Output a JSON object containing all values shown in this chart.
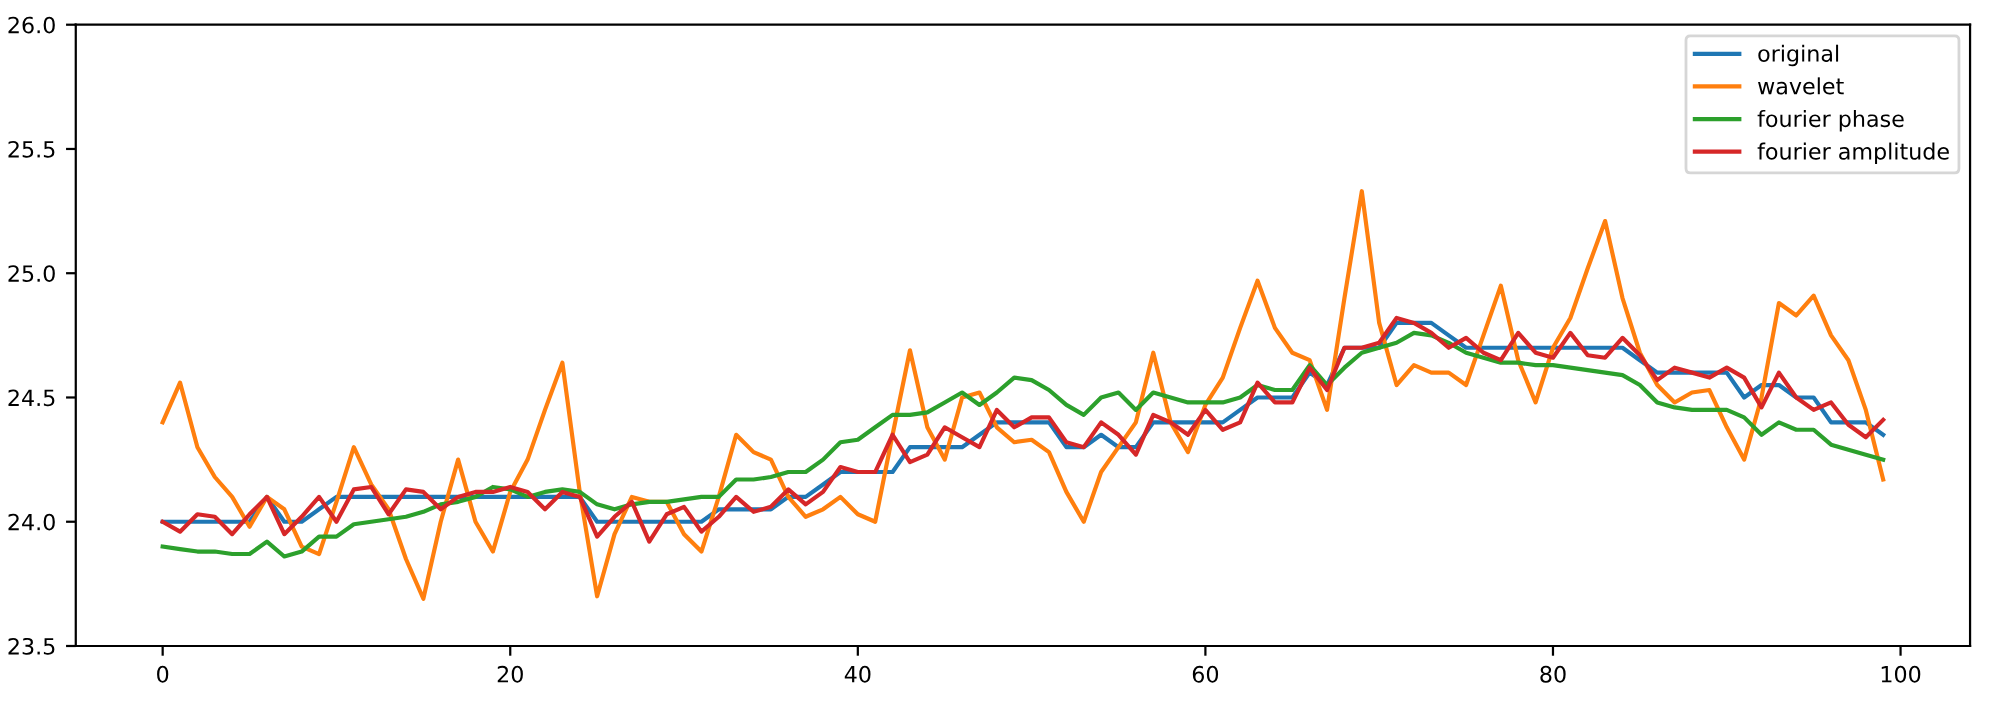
{
  "chart_data": {
    "type": "line",
    "x": [
      0,
      1,
      2,
      3,
      4,
      5,
      6,
      7,
      8,
      9,
      10,
      11,
      12,
      13,
      14,
      15,
      16,
      17,
      18,
      19,
      20,
      21,
      22,
      23,
      24,
      25,
      26,
      27,
      28,
      29,
      30,
      31,
      32,
      33,
      34,
      35,
      36,
      37,
      38,
      39,
      40,
      41,
      42,
      43,
      44,
      45,
      46,
      47,
      48,
      49,
      50,
      51,
      52,
      53,
      54,
      55,
      56,
      57,
      58,
      59,
      60,
      61,
      62,
      63,
      64,
      65,
      66,
      67,
      68,
      69,
      70,
      71,
      72,
      73,
      74,
      75,
      76,
      77,
      78,
      79,
      80,
      81,
      82,
      83,
      84,
      85,
      86,
      87,
      88,
      89,
      90,
      91,
      92,
      93,
      94,
      95,
      96,
      97,
      98,
      99
    ],
    "series": [
      {
        "name": "original",
        "color": "#1f77b4",
        "values": [
          24.0,
          24.0,
          24.0,
          24.0,
          24.0,
          24.0,
          24.1,
          24.0,
          24.0,
          24.05,
          24.1,
          24.1,
          24.1,
          24.1,
          24.1,
          24.1,
          24.1,
          24.1,
          24.1,
          24.1,
          24.1,
          24.1,
          24.1,
          24.1,
          24.1,
          24.0,
          24.0,
          24.0,
          24.0,
          24.0,
          24.0,
          24.0,
          24.05,
          24.05,
          24.05,
          24.05,
          24.1,
          24.1,
          24.15,
          24.2,
          24.2,
          24.2,
          24.2,
          24.3,
          24.3,
          24.3,
          24.3,
          24.35,
          24.4,
          24.4,
          24.4,
          24.4,
          24.3,
          24.3,
          24.35,
          24.3,
          24.3,
          24.4,
          24.4,
          24.4,
          24.4,
          24.4,
          24.45,
          24.5,
          24.5,
          24.5,
          24.6,
          24.55,
          24.7,
          24.7,
          24.7,
          24.8,
          24.8,
          24.8,
          24.75,
          24.7,
          24.7,
          24.7,
          24.7,
          24.7,
          24.7,
          24.7,
          24.7,
          24.7,
          24.7,
          24.65,
          24.6,
          24.6,
          24.6,
          24.6,
          24.6,
          24.5,
          24.55,
          24.55,
          24.5,
          24.5,
          24.4,
          24.4,
          24.4,
          24.35
        ]
      },
      {
        "name": "wavelet",
        "color": "#ff7f0e",
        "values": [
          24.4,
          24.56,
          24.3,
          24.18,
          24.1,
          23.98,
          24.1,
          24.05,
          23.9,
          23.87,
          24.08,
          24.3,
          24.15,
          24.05,
          23.85,
          23.69,
          24.0,
          24.25,
          24.0,
          23.88,
          24.12,
          24.25,
          24.45,
          24.64,
          24.12,
          23.7,
          23.95,
          24.1,
          24.08,
          24.08,
          23.95,
          23.88,
          24.1,
          24.35,
          24.28,
          24.25,
          24.1,
          24.02,
          24.05,
          24.1,
          24.03,
          24.0,
          24.35,
          24.69,
          24.38,
          24.25,
          24.5,
          24.52,
          24.38,
          24.32,
          24.33,
          24.28,
          24.12,
          24.0,
          24.2,
          24.3,
          24.4,
          24.68,
          24.4,
          24.28,
          24.47,
          24.58,
          24.78,
          24.97,
          24.78,
          24.68,
          24.65,
          24.45,
          24.9,
          25.33,
          24.8,
          24.55,
          24.63,
          24.6,
          24.6,
          24.55,
          24.75,
          24.95,
          24.65,
          24.48,
          24.7,
          24.82,
          25.02,
          25.21,
          24.9,
          24.68,
          24.55,
          24.48,
          24.52,
          24.53,
          24.38,
          24.25,
          24.5,
          24.88,
          24.83,
          24.91,
          24.75,
          24.65,
          24.45,
          24.17
        ]
      },
      {
        "name": "fourier phase",
        "color": "#2ca02c",
        "values": [
          23.9,
          23.89,
          23.88,
          23.88,
          23.87,
          23.87,
          23.92,
          23.86,
          23.88,
          23.94,
          23.94,
          23.99,
          24.0,
          24.01,
          24.02,
          24.04,
          24.07,
          24.08,
          24.1,
          24.14,
          24.13,
          24.1,
          24.12,
          24.13,
          24.12,
          24.07,
          24.05,
          24.07,
          24.08,
          24.08,
          24.09,
          24.1,
          24.1,
          24.17,
          24.17,
          24.18,
          24.2,
          24.2,
          24.25,
          24.32,
          24.33,
          24.38,
          24.43,
          24.43,
          24.44,
          24.48,
          24.52,
          24.47,
          24.52,
          24.58,
          24.57,
          24.53,
          24.47,
          24.43,
          24.5,
          24.52,
          24.45,
          24.52,
          24.5,
          24.48,
          24.48,
          24.48,
          24.5,
          24.55,
          24.53,
          24.53,
          24.63,
          24.55,
          24.62,
          24.68,
          24.7,
          24.72,
          24.76,
          24.75,
          24.72,
          24.68,
          24.66,
          24.64,
          24.64,
          24.63,
          24.63,
          24.62,
          24.61,
          24.6,
          24.59,
          24.55,
          24.48,
          24.46,
          24.45,
          24.45,
          24.45,
          24.42,
          24.35,
          24.4,
          24.37,
          24.37,
          24.31,
          24.29,
          24.27,
          24.25
        ]
      },
      {
        "name": "fourier amplitude",
        "color": "#d62728",
        "values": [
          24.0,
          23.96,
          24.03,
          24.02,
          23.95,
          24.03,
          24.1,
          23.95,
          24.02,
          24.1,
          24.0,
          24.13,
          24.14,
          24.03,
          24.13,
          24.12,
          24.05,
          24.1,
          24.12,
          24.12,
          24.14,
          24.12,
          24.05,
          24.12,
          24.1,
          23.94,
          24.02,
          24.08,
          23.92,
          24.03,
          24.06,
          23.96,
          24.02,
          24.1,
          24.04,
          24.06,
          24.13,
          24.07,
          24.12,
          24.22,
          24.2,
          24.2,
          24.35,
          24.24,
          24.27,
          24.38,
          24.34,
          24.3,
          24.45,
          24.38,
          24.42,
          24.42,
          24.32,
          24.3,
          24.4,
          24.35,
          24.27,
          24.43,
          24.4,
          24.35,
          24.45,
          24.37,
          24.4,
          24.56,
          24.48,
          24.48,
          24.62,
          24.53,
          24.7,
          24.7,
          24.72,
          24.82,
          24.8,
          24.76,
          24.7,
          24.74,
          24.68,
          24.65,
          24.76,
          24.68,
          24.66,
          24.76,
          24.67,
          24.66,
          24.74,
          24.67,
          24.57,
          24.62,
          24.6,
          24.58,
          24.62,
          24.58,
          24.46,
          24.6,
          24.5,
          24.45,
          24.48,
          24.39,
          24.34,
          24.41
        ]
      }
    ],
    "xlim": [
      -5,
      104
    ],
    "xticks": [
      0,
      20,
      40,
      60,
      80,
      100
    ],
    "ylim": [
      23.5,
      26.0
    ],
    "yticks": [
      {
        "value": 23.5,
        "label": "23.5"
      },
      {
        "value": 24.0,
        "label": "24.0"
      },
      {
        "value": 24.5,
        "label": "24.5"
      },
      {
        "value": 25.0,
        "label": "25.0"
      },
      {
        "value": 25.5,
        "label": "25.5"
      },
      {
        "value": 26.0,
        "label": "26.0"
      }
    ],
    "legend": "top right",
    "grid": false
  }
}
